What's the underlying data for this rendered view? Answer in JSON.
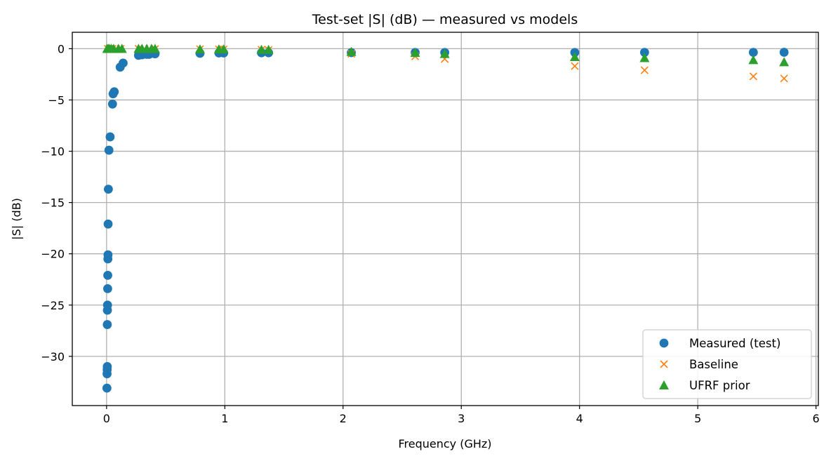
{
  "chart_data": {
    "type": "scatter",
    "title": "Test-set |S| (dB) — measured vs models",
    "xlabel": "Frequency (GHz)",
    "ylabel": "|S| (dB)",
    "xlim": [
      -0.29,
      6.02
    ],
    "ylim": [
      -34.8,
      1.6
    ],
    "xticks": [
      0,
      1,
      2,
      3,
      4,
      5,
      6
    ],
    "yticks": [
      0,
      -5,
      -10,
      -15,
      -20,
      -25,
      -30
    ],
    "grid": true,
    "legend_position": "bottom-right",
    "series": [
      {
        "name": "Measured (test)",
        "marker": "circle",
        "color": "#1f77b4",
        "x": [
          0.003,
          0.004,
          0.005,
          0.006,
          0.006,
          0.007,
          0.008,
          0.009,
          0.01,
          0.011,
          0.012,
          0.013,
          0.015,
          0.02,
          0.03,
          0.05,
          0.055,
          0.065,
          0.115,
          0.14,
          0.27,
          0.3,
          0.34,
          0.36,
          0.41,
          0.79,
          0.95,
          0.99,
          1.31,
          1.37,
          2.07,
          2.61,
          2.86,
          3.96,
          4.55,
          5.47,
          5.73
        ],
        "y": [
          -33.1,
          -31.7,
          -31.3,
          -31.0,
          -26.9,
          -25.5,
          -25.0,
          -23.4,
          -22.1,
          -20.5,
          -20.1,
          -17.1,
          -13.7,
          -9.9,
          -8.6,
          -5.4,
          -4.4,
          -4.2,
          -1.8,
          -1.4,
          -0.65,
          -0.6,
          -0.55,
          -0.55,
          -0.5,
          -0.45,
          -0.42,
          -0.42,
          -0.4,
          -0.4,
          -0.38,
          -0.37,
          -0.37,
          -0.37,
          -0.36,
          -0.36,
          -0.35
        ]
      },
      {
        "name": "Baseline",
        "marker": "x",
        "color": "#ff7f0e",
        "x": [
          0.01,
          0.025,
          0.05,
          0.08,
          0.12,
          0.27,
          0.32,
          0.36,
          0.41,
          0.79,
          0.95,
          0.99,
          1.31,
          1.37,
          2.07,
          2.61,
          2.86,
          3.96,
          4.55,
          5.47,
          5.73
        ],
        "y": [
          0.0,
          0.0,
          0.0,
          0.0,
          0.0,
          0.0,
          -0.02,
          -0.02,
          -0.03,
          -0.05,
          -0.06,
          -0.07,
          -0.1,
          -0.12,
          -0.5,
          -0.75,
          -1.0,
          -1.7,
          -2.1,
          -2.7,
          -2.9
        ]
      },
      {
        "name": "UFRF prior",
        "marker": "triangle",
        "color": "#2ca02c",
        "x": [
          0.005,
          0.015,
          0.025,
          0.04,
          0.06,
          0.1,
          0.13,
          0.27,
          0.3,
          0.34,
          0.38,
          0.41,
          0.79,
          0.95,
          0.99,
          1.31,
          1.37,
          2.07,
          2.61,
          2.86,
          3.96,
          4.55,
          5.47,
          5.73
        ],
        "y": [
          0.0,
          0.0,
          0.0,
          0.0,
          0.0,
          0.0,
          0.0,
          0.0,
          0.0,
          0.0,
          0.0,
          0.0,
          -0.05,
          -0.05,
          -0.05,
          -0.1,
          -0.1,
          -0.3,
          -0.4,
          -0.5,
          -0.8,
          -0.9,
          -1.1,
          -1.3
        ]
      }
    ]
  }
}
